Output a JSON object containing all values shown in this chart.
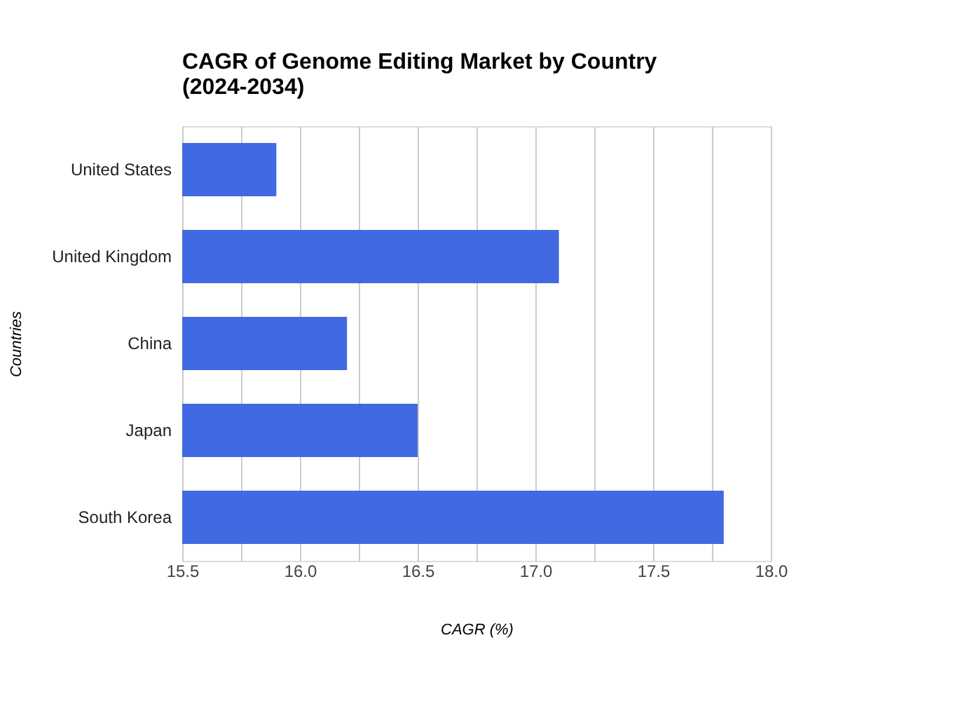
{
  "chart_data": {
    "type": "bar",
    "orientation": "horizontal",
    "title": "CAGR of Genome Editing Market by Country\n(2024-2034)",
    "xlabel": "CAGR (%)",
    "ylabel": "Countries",
    "categories": [
      "United States",
      "United Kingdom",
      "China",
      "Japan",
      "South Korea"
    ],
    "values": [
      15.9,
      17.1,
      16.2,
      16.5,
      17.8
    ],
    "color": "#4169e1",
    "xlim": [
      15.5,
      18.0
    ],
    "xticks": [
      15.5,
      {
        "value": 15.75,
        "label": null
      },
      {
        "value": 16.0,
        "label": "16.0"
      },
      {
        "value": 16.25,
        "label": null
      },
      16.5,
      {
        "value": 16.75,
        "label": null
      },
      {
        "value": 17.0,
        "label": "17.0"
      },
      {
        "value": 17.25,
        "label": null
      },
      17.5,
      {
        "value": 17.75,
        "label": null
      },
      {
        "value": 18.0,
        "label": "18.0"
      }
    ],
    "grid": "x"
  }
}
